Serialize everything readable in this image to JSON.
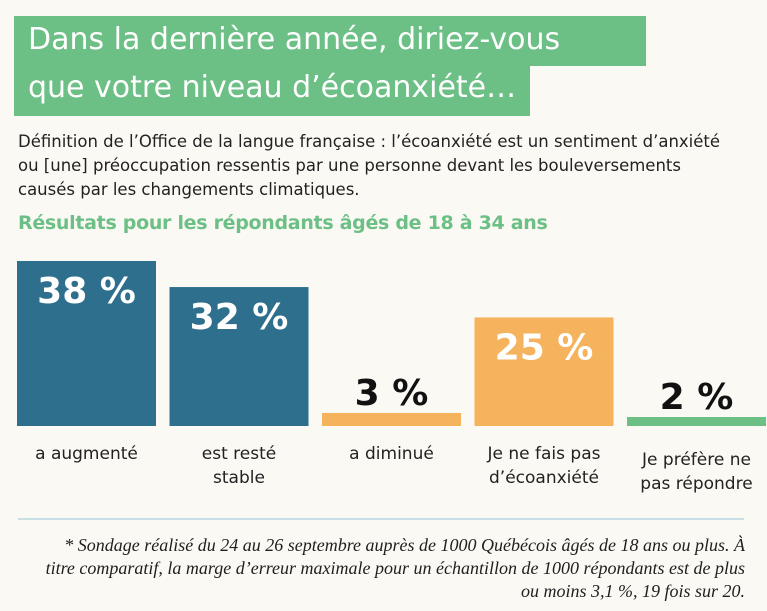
{
  "title": {
    "line1": "Dans la dernière année, diriez-vous",
    "line2": "que votre niveau d’écoanxiété…"
  },
  "definition": "Définition de l’Office de la langue française : l’écoanxiété est un sentiment d’anxiété ou [une] préoccupation ressentis par une personne devant les bouleversements causés par les changements climatiques.",
  "note": "* Sondage réalisé du 24 au 26 septembre auprès de 1000 Québécois âgés de 18 ans ou plus. À titre comparatif, la marge d’erreur maximale pour un échantillon de 1000 répondants est de plus ou moins 3,1 %, 19 fois sur 20.",
  "colors": {
    "title_bg": "#6cbf85",
    "accent_green": "#6cbf85",
    "blue": "#2e6f8e",
    "orange": "#f6b35d",
    "green_bar": "#6cbf85"
  },
  "chart_data": {
    "type": "bar",
    "title": "Résultats pour les répondants âgés de 18 à 34 ans",
    "categories": [
      [
        "a augmenté"
      ],
      [
        "est resté",
        "stable"
      ],
      [
        "a diminué"
      ],
      [
        "Je ne fais pas",
        "d’écoanxiété"
      ],
      [
        "Je préfère ne",
        "pas répondre"
      ]
    ],
    "values": [
      38,
      32,
      3,
      25,
      2
    ],
    "value_labels": [
      "38 %",
      "32 %",
      "3 %",
      "25 %",
      "2 %"
    ],
    "bar_colors": [
      "#2e6f8e",
      "#2e6f8e",
      "#f6b35d",
      "#f6b35d",
      "#6cbf85"
    ],
    "label_colors": [
      "#ffffff",
      "#ffffff",
      "#111111",
      "#ffffff",
      "#111111"
    ],
    "ylim": [
      0,
      38
    ],
    "unit": "%"
  }
}
